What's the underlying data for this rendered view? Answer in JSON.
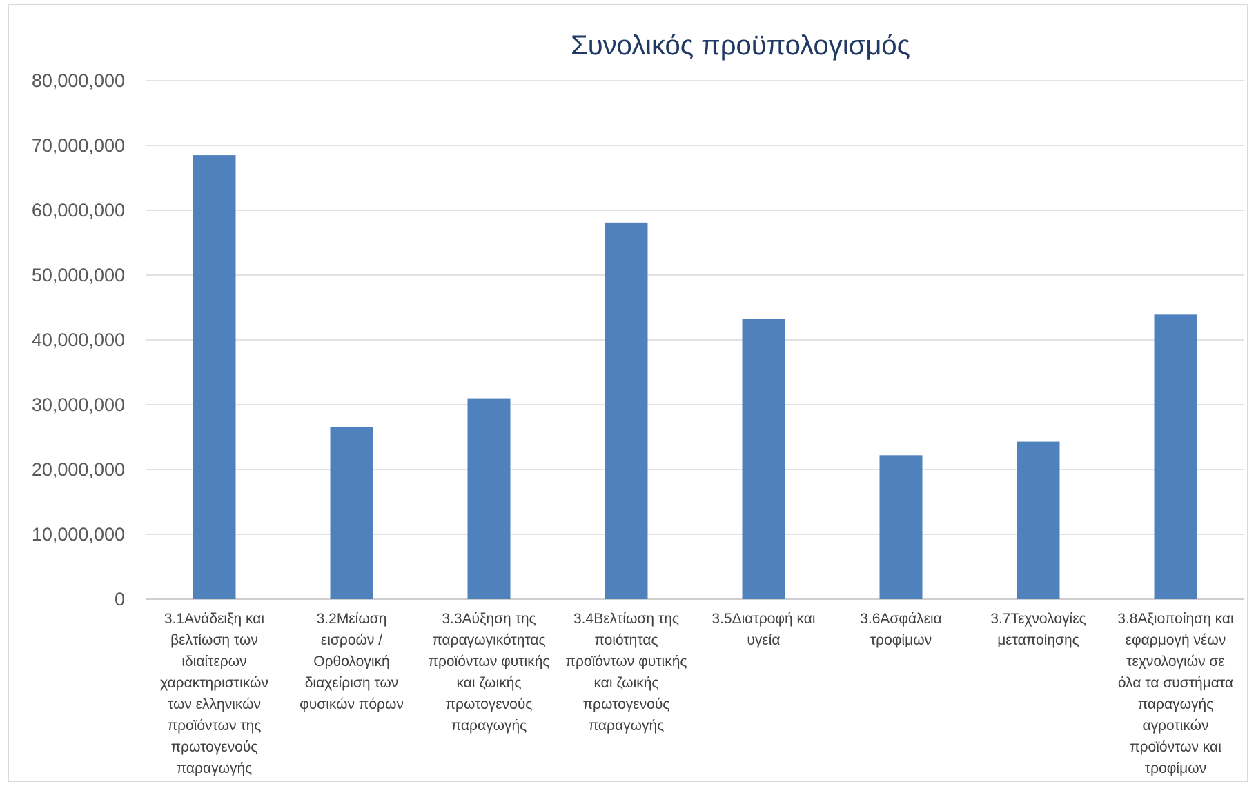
{
  "chart_data": {
    "type": "bar",
    "title": "Συνολικός προϋπολογισμός",
    "xlabel": "",
    "ylabel": "",
    "ylim": [
      0,
      80000000
    ],
    "ytick_labels": [
      "0",
      "10,000,000",
      "20,000,000",
      "30,000,000",
      "40,000,000",
      "50,000,000",
      "60,000,000",
      "70,000,000",
      "80,000,000"
    ],
    "grid": true,
    "legend": "none",
    "bar_color": "#4f81bd",
    "categories": [
      [
        "3.1Ανάδειξη και",
        "βελτίωση των",
        "ιδιαίτερων",
        "χαρακτηριστικών",
        "των ελληνικών",
        "προϊόντων της",
        "πρωτογενούς",
        "παραγωγής"
      ],
      [
        "3.2Μείωση",
        "εισροών /",
        "Ορθολογική",
        "διαχείριση των",
        "φυσικών πόρων"
      ],
      [
        "3.3Αύξηση της",
        "παραγωγικότητας",
        "προϊόντων φυτικής",
        "και ζωικής",
        "πρωτογενούς",
        "παραγωγής"
      ],
      [
        "3.4Βελτίωση της",
        "ποιότητας",
        "προϊόντων φυτικής",
        "και ζωικής",
        "πρωτογενούς",
        "παραγωγής"
      ],
      [
        "3.5Διατροφή και",
        "υγεία"
      ],
      [
        "3.6Ασφάλεια",
        "τροφίμων"
      ],
      [
        "3.7Τεχνολογίες",
        "μεταποίησης"
      ],
      [
        "3.8Αξιοποίηση και",
        "εφαρμογή νέων",
        "τεχνολογιών σε",
        "όλα τα συστήματα",
        "παραγωγής",
        "αγροτικών",
        "προϊόντων και",
        "τροφίμων"
      ]
    ],
    "values": [
      68500000,
      26500000,
      31000000,
      58100000,
      43200000,
      22200000,
      24300000,
      43900000
    ]
  }
}
